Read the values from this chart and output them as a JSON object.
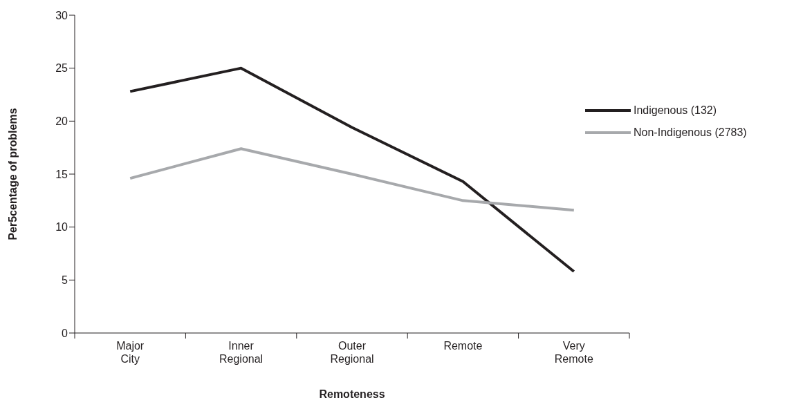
{
  "chart_data": {
    "type": "line",
    "xlabel": "Remoteness",
    "ylabel": "Per5centage of problems",
    "categories": [
      "Major City",
      "Inner Regional",
      "Outer Regional",
      "Remote",
      "Very Remote"
    ],
    "series": [
      {
        "name": "Indigenous (132)",
        "color": "#231f20",
        "values": [
          22.8,
          25,
          19.4,
          14.3,
          5.8
        ]
      },
      {
        "name": "Non-Indigenous (2783)",
        "color": "#a7a9ac",
        "values": [
          14.6,
          17.4,
          15,
          12.5,
          11.6
        ]
      }
    ],
    "ylim": [
      0,
      30
    ],
    "yticks": [
      0,
      5,
      10,
      15,
      20,
      25,
      30
    ],
    "grid": false,
    "legend": "top right",
    "marker": "none",
    "line_style": "solid"
  }
}
